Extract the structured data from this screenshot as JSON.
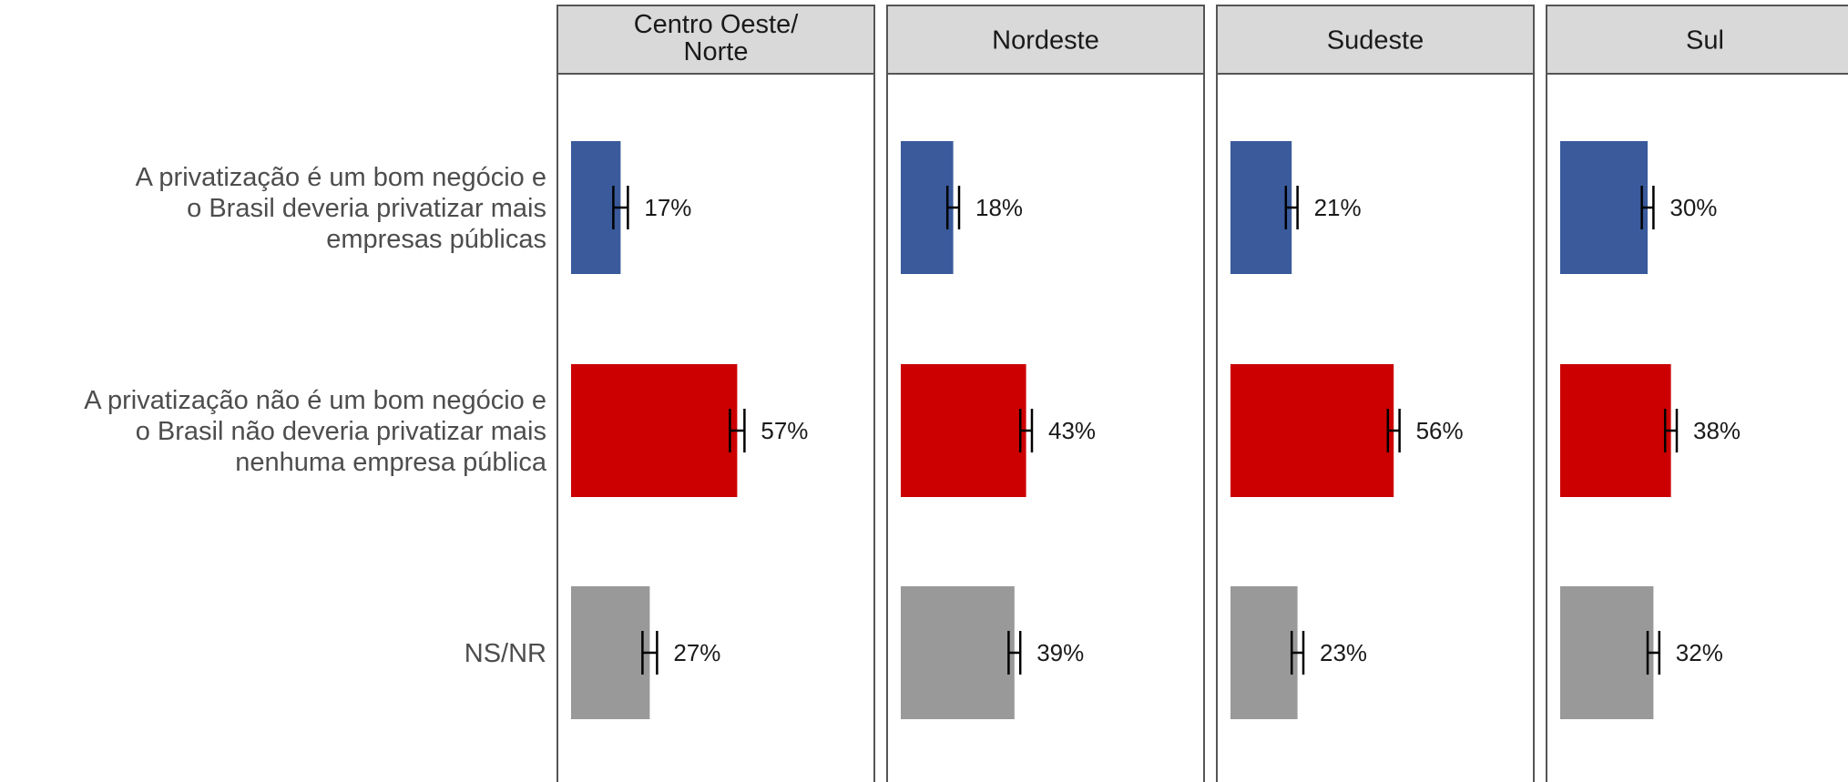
{
  "chart_data": {
    "type": "bar",
    "orientation": "horizontal",
    "faceted": true,
    "categories": [
      [
        "A privatização é um bom negócio e",
        "o Brasil deveria privatizar mais",
        "empresas públicas"
      ],
      [
        "A privatização não é um bom negócio e",
        "o Brasil não deveria privatizar mais",
        "nenhuma empresa pública"
      ],
      [
        "NS/NR"
      ]
    ],
    "category_colors": [
      "#3a5a9b",
      "#cc0000",
      "#999999"
    ],
    "panels": [
      {
        "title": [
          "Centro Oeste/",
          "Norte"
        ],
        "values": [
          17,
          57,
          27
        ],
        "labels": [
          "17%",
          "57%",
          "27%"
        ],
        "error": [
          2.5,
          2.5,
          2.5
        ]
      },
      {
        "title": [
          "Nordeste"
        ],
        "values": [
          18,
          43,
          39
        ],
        "labels": [
          "18%",
          "43%",
          "39%"
        ],
        "error": [
          2,
          2,
          2
        ]
      },
      {
        "title": [
          "Sudeste"
        ],
        "values": [
          21,
          56,
          23
        ],
        "labels": [
          "21%",
          "56%",
          "23%"
        ],
        "error": [
          2,
          2,
          2
        ]
      },
      {
        "title": [
          "Sul"
        ],
        "values": [
          30,
          38,
          32
        ],
        "labels": [
          "30%",
          "38%",
          "32%"
        ],
        "error": [
          2,
          2,
          2
        ]
      }
    ],
    "xlim": [
      0,
      100
    ],
    "grid": false,
    "legend": "none"
  }
}
